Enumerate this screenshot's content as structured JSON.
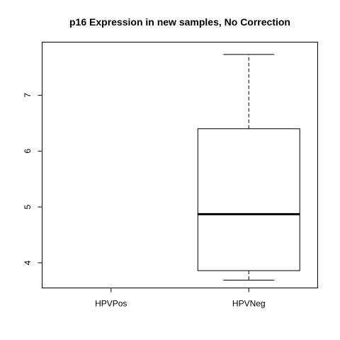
{
  "chart_data": {
    "type": "box",
    "title": "p16 Expression in new samples, No Correction",
    "xlabel": "",
    "ylabel": "",
    "categories": [
      "HPVPos",
      "HPVNeg"
    ],
    "ylim": [
      3.55,
      7.95
    ],
    "yticks": [
      4,
      5,
      6,
      7
    ],
    "boxes": [
      {
        "category": "HPVPos",
        "empty": true
      },
      {
        "category": "HPVNeg",
        "empty": false,
        "whisker_low": 3.69,
        "q1": 3.86,
        "median": 4.87,
        "q3": 6.4,
        "whisker_high": 7.73
      }
    ],
    "grid": false,
    "legend": "none"
  }
}
